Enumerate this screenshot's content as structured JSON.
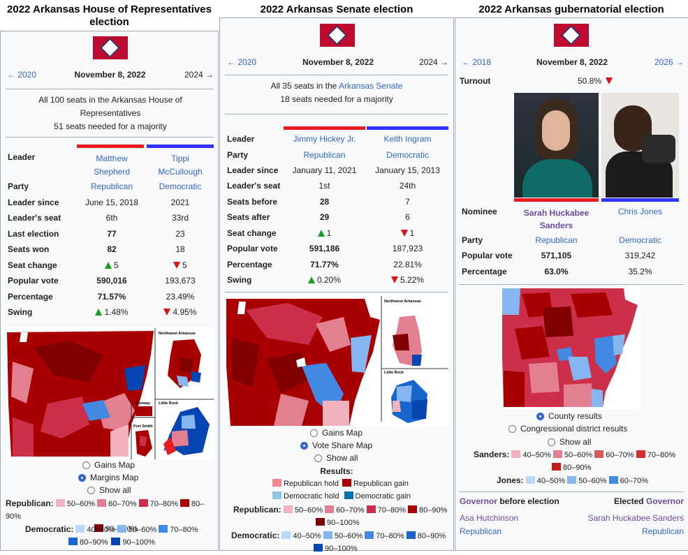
{
  "house": {
    "title": "2022 Arkansas House of Representatives election",
    "prev": "← 2020",
    "date": "November 8, 2022",
    "next": "2024 →",
    "seats_line1": "All 100 seats in the Arkansas House of",
    "seats_line2": "Representatives",
    "majority": "51 seats needed for a majority",
    "rows": {
      "leader": {
        "label": "Leader",
        "rep1": "Matthew",
        "rep2": "Shepherd",
        "dem1": "Tippi",
        "dem2": "McCullough"
      },
      "party": {
        "label": "Party",
        "rep": "Republican",
        "dem": "Democratic"
      },
      "leader_since": {
        "label": "Leader since",
        "rep": "June 15, 2018",
        "dem": "2021"
      },
      "leader_seat": {
        "label": "Leader's seat",
        "rep": "6th",
        "dem": "33rd"
      },
      "last_election": {
        "label": "Last election",
        "rep": "77",
        "dem": "23"
      },
      "seats_won": {
        "label": "Seats won",
        "rep": "82",
        "dem": "18"
      },
      "seat_change": {
        "label": "Seat change",
        "rep": "5",
        "dem": "5"
      },
      "popular_vote": {
        "label": "Popular vote",
        "rep": "590,016",
        "dem": "193,673"
      },
      "percentage": {
        "label": "Percentage",
        "rep": "71.57%",
        "dem": "23.49%"
      },
      "swing": {
        "label": "Swing",
        "rep": "1.48%",
        "dem": "4.95%"
      }
    },
    "inset_labels": {
      "nw": "Northwest Arkansas",
      "conway": "Conway",
      "lr": "Little Rock",
      "fs": "Fort Smith"
    },
    "radios": [
      "Gains Map",
      "Margins Map",
      "Show all"
    ],
    "legend": {
      "rep_label": "Republican:",
      "rep": [
        "50–60%",
        "60–70%",
        "70–80%",
        "80–90%",
        "90–100%"
      ],
      "dem_label": "Democratic:",
      "dem": [
        "40–50%",
        "50–60%",
        "70–80%",
        "80–90%",
        "90–100%"
      ]
    }
  },
  "senate": {
    "title": "2022 Arkansas Senate election",
    "prev": "← 2020",
    "date": "November 8, 2022",
    "next": "2024 →",
    "seats_pre": "All 35 seats in the ",
    "seats_link": "Arkansas Senate",
    "majority": "18 seats needed for a majority",
    "rows": {
      "leader": {
        "label": "Leader",
        "rep": "Jimmy Hickey Jr.",
        "dem": "Keith Ingram"
      },
      "party": {
        "label": "Party",
        "rep": "Republican",
        "dem": "Democratic"
      },
      "leader_since": {
        "label": "Leader since",
        "rep": "January 11, 2021",
        "dem": "January 15, 2013"
      },
      "leader_seat": {
        "label": "Leader's seat",
        "rep": "1st",
        "dem": "24th"
      },
      "seats_before": {
        "label": "Seats before",
        "rep": "28",
        "dem": "7"
      },
      "seats_after": {
        "label": "Seats after",
        "rep": "29",
        "dem": "6"
      },
      "seat_change": {
        "label": "Seat change",
        "rep": "1",
        "dem": "1"
      },
      "popular_vote": {
        "label": "Popular vote",
        "rep": "591,186",
        "dem": "187,923"
      },
      "percentage": {
        "label": "Percentage",
        "rep": "71.77%",
        "dem": "22.81%"
      },
      "swing": {
        "label": "Swing",
        "rep": "0.20%",
        "dem": "5.22%"
      }
    },
    "inset_labels": {
      "nw": "Northwest Arkansas",
      "lr": "Little Rock"
    },
    "radios": [
      "Gains Map",
      "Vote Share Map",
      "Show all"
    ],
    "results_label": "Results:",
    "results": [
      "Republican hold",
      "Republican gain",
      "Democratic hold",
      "Democratic gain"
    ],
    "legend": {
      "rep_label": "Republican:",
      "rep": [
        "50–60%",
        "60–70%",
        "70–80%",
        "80–90%",
        "90–100%"
      ],
      "dem_label": "Democratic:",
      "dem": [
        "40–50%",
        "50–60%",
        "70–80%",
        "80–90%",
        "90–100%"
      ]
    }
  },
  "gov": {
    "title": "2022 Arkansas gubernatorial election",
    "prev": "← 2018",
    "date": "November 8, 2022",
    "next": "2026 →",
    "turnout_label": "Turnout",
    "turnout": "50.8%",
    "rows": {
      "nominee": {
        "label": "Nominee",
        "rep1": "Sarah Huckabee",
        "rep2": "Sanders",
        "dem": "Chris Jones"
      },
      "party": {
        "label": "Party",
        "rep": "Republican",
        "dem": "Democratic"
      },
      "popular_vote": {
        "label": "Popular vote",
        "rep": "571,105",
        "dem": "319,242"
      },
      "percentage": {
        "label": "Percentage",
        "rep": "63.0%",
        "dem": "35.2%"
      }
    },
    "radios": [
      "County results",
      "Congressional district results",
      "Show all"
    ],
    "legend": {
      "sanders_label": "Sanders:",
      "sanders": [
        "40–50%",
        "50–60%",
        "60–70%",
        "70–80%",
        "80–90%"
      ],
      "jones_label": "Jones:",
      "jones": [
        "40–50%",
        "50–60%",
        "60–70%"
      ]
    },
    "before_link": "Governor",
    "before_text": " before election",
    "elected_text": "Elected ",
    "elected_link": "Governor",
    "before_name": "Asa Hutchinson",
    "before_party": "Republican",
    "elected_name": "Sarah Huckabee Sanders",
    "elected_party": "Republican"
  },
  "colors": {
    "rep_bar": "#e81b23",
    "dem_bar": "#3333ff",
    "r1": "#f2b3be",
    "r2": "#e27f90",
    "r3": "#cc2f4a",
    "r4": "#a80000",
    "r5": "#800000",
    "d1": "#b9d7ff",
    "d2": "#86b6f2",
    "d3": "#4389e3",
    "d4": "#1666cb",
    "d5": "#0645b4"
  }
}
